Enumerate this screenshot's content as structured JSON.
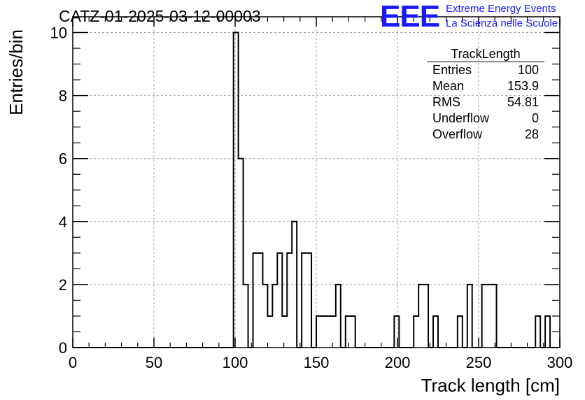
{
  "title": "CATZ-01-2025-03-12-00003",
  "brand": {
    "logo": "EEE",
    "line1": "Extreme Energy Events",
    "line2": "La Scienza nelle Scuole",
    "color": "#1a1aff"
  },
  "stats_box": {
    "name": "TrackLength",
    "rows": [
      {
        "label": "Entries",
        "value": "100"
      },
      {
        "label": "Mean",
        "value": "153.9"
      },
      {
        "label": "RMS",
        "value": "54.81"
      },
      {
        "label": "Underflow",
        "value": "0"
      },
      {
        "label": "Overflow",
        "value": "28"
      }
    ]
  },
  "chart_data": {
    "type": "bar",
    "title": "CATZ-01-2025-03-12-00003",
    "xlabel": "Track length [cm]",
    "ylabel": "Entries/bin",
    "xlim": [
      0,
      300
    ],
    "ylim": [
      0,
      10.5
    ],
    "xticks": [
      0,
      50,
      100,
      150,
      200,
      250,
      300
    ],
    "yticks": [
      0,
      2,
      4,
      6,
      8,
      10
    ],
    "grid": true,
    "bins": [
      {
        "x0": 99,
        "x1": 102,
        "y": 10
      },
      {
        "x0": 102,
        "x1": 105,
        "y": 6
      },
      {
        "x0": 105,
        "x1": 108,
        "y": 2
      },
      {
        "x0": 108,
        "x1": 111,
        "y": 0
      },
      {
        "x0": 111,
        "x1": 117,
        "y": 3
      },
      {
        "x0": 117,
        "x1": 120,
        "y": 2
      },
      {
        "x0": 120,
        "x1": 123,
        "y": 1
      },
      {
        "x0": 123,
        "x1": 126,
        "y": 2
      },
      {
        "x0": 126,
        "x1": 129,
        "y": 3
      },
      {
        "x0": 129,
        "x1": 132,
        "y": 1
      },
      {
        "x0": 132,
        "x1": 135,
        "y": 3
      },
      {
        "x0": 135,
        "x1": 138,
        "y": 4
      },
      {
        "x0": 138,
        "x1": 141,
        "y": 0
      },
      {
        "x0": 141,
        "x1": 147,
        "y": 3
      },
      {
        "x0": 147,
        "x1": 150,
        "y": 0
      },
      {
        "x0": 150,
        "x1": 162,
        "y": 1
      },
      {
        "x0": 162,
        "x1": 165,
        "y": 2
      },
      {
        "x0": 165,
        "x1": 168,
        "y": 0
      },
      {
        "x0": 168,
        "x1": 174,
        "y": 1
      },
      {
        "x0": 198,
        "x1": 201,
        "y": 1
      },
      {
        "x0": 210,
        "x1": 213,
        "y": 1
      },
      {
        "x0": 213,
        "x1": 219,
        "y": 2
      },
      {
        "x0": 219,
        "x1": 222,
        "y": 0
      },
      {
        "x0": 222,
        "x1": 225,
        "y": 1
      },
      {
        "x0": 237,
        "x1": 240,
        "y": 1
      },
      {
        "x0": 243,
        "x1": 246,
        "y": 2
      },
      {
        "x0": 246,
        "x1": 252,
        "y": 0
      },
      {
        "x0": 252,
        "x1": 261,
        "y": 2
      },
      {
        "x0": 285,
        "x1": 288,
        "y": 1
      },
      {
        "x0": 291,
        "x1": 294,
        "y": 1
      }
    ]
  }
}
